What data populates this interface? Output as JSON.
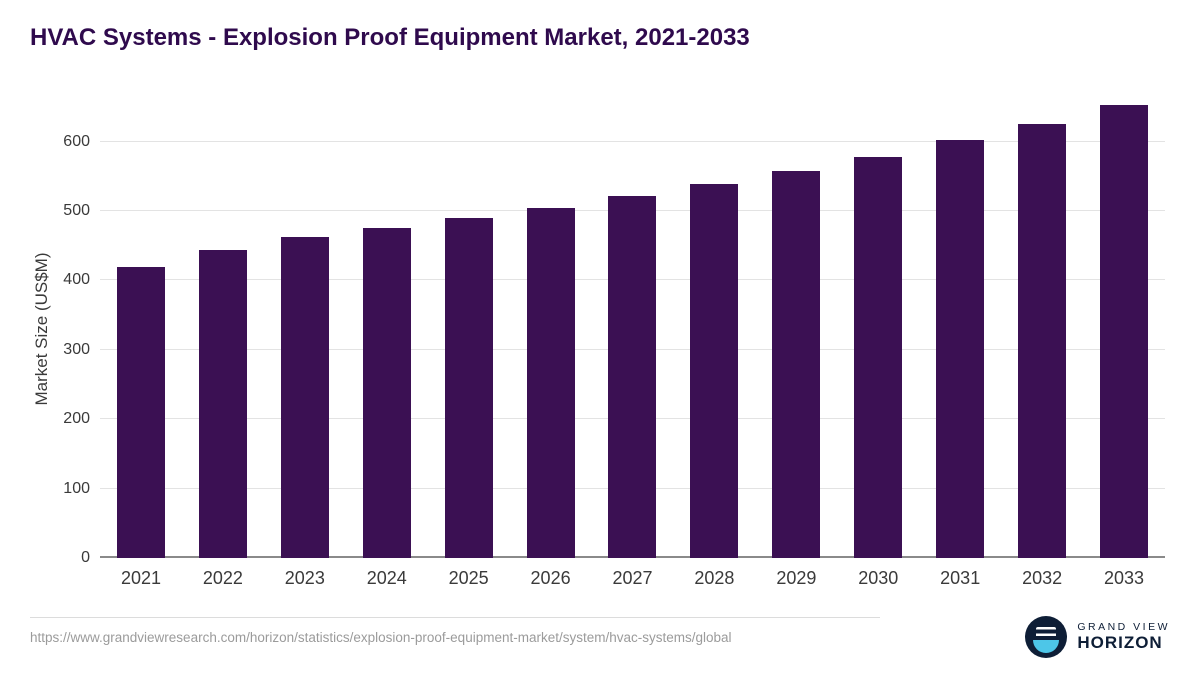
{
  "chart_data": {
    "type": "bar",
    "title": "HVAC Systems - Explosion Proof Equipment Market, 2021-2033",
    "ylabel": "Market Size (US$M)",
    "xlabel": "",
    "categories": [
      "2021",
      "2022",
      "2023",
      "2024",
      "2025",
      "2026",
      "2027",
      "2028",
      "2029",
      "2030",
      "2031",
      "2032",
      "2033"
    ],
    "values": [
      420,
      444,
      463,
      476,
      490,
      504,
      521,
      539,
      558,
      578,
      602,
      625,
      653
    ],
    "ylim": [
      0,
      660
    ],
    "yticks": [
      0,
      100,
      200,
      300,
      400,
      500,
      600
    ],
    "grid": true,
    "legend": "none"
  },
  "colors": {
    "bar": "#3b1053",
    "title": "#2f0a4d",
    "axis_text": "#3a3a3a",
    "gridline": "#e3e3e3",
    "baseline": "#8a8a8a",
    "logo_navy": "#0e1e36",
    "logo_teal": "#4dc6e8"
  },
  "footer": {
    "source_url": "https://www.grandviewresearch.com/horizon/statistics/explosion-proof-equipment-market/system/hvac-systems/global",
    "logo": {
      "line1": "GRAND VIEW",
      "line2": "HORIZON"
    }
  }
}
